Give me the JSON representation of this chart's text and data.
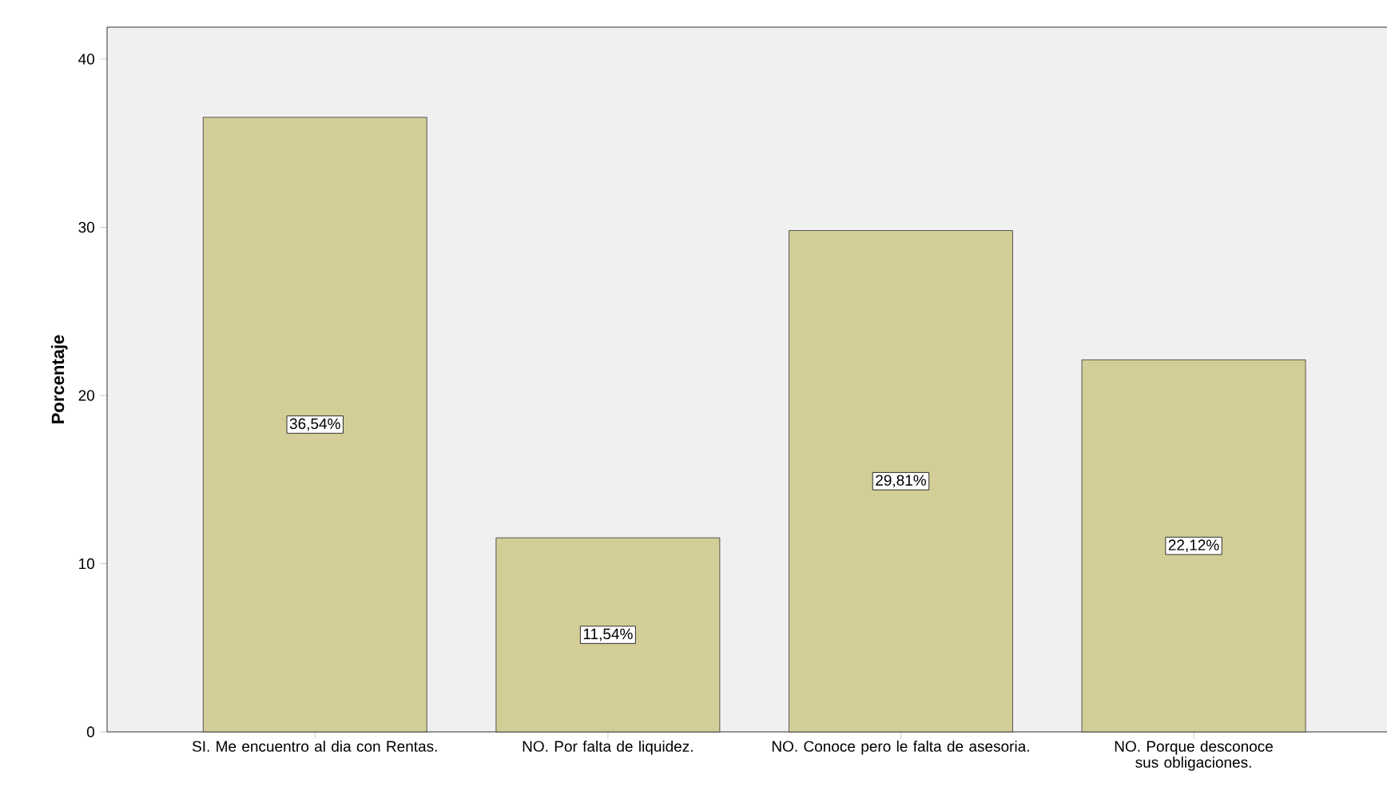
{
  "chart_data": {
    "type": "bar",
    "ylabel": "Porcentaje",
    "categories": [
      "SI. Me encuentro al dia con Rentas.",
      "NO. Por falta de liquidez.",
      "NO. Conoce pero le falta de asesoria.",
      "NO. Porque desconoce sus obligaciones."
    ],
    "values": [
      36.54,
      11.54,
      29.81,
      22.12
    ],
    "value_labels": [
      "36,54%",
      "11,54%",
      "29,81%",
      "22,12%"
    ],
    "color": "#d3ce98",
    "ylim": [
      0,
      41.9
    ],
    "yticks": [
      0,
      10,
      20,
      30,
      40
    ]
  }
}
